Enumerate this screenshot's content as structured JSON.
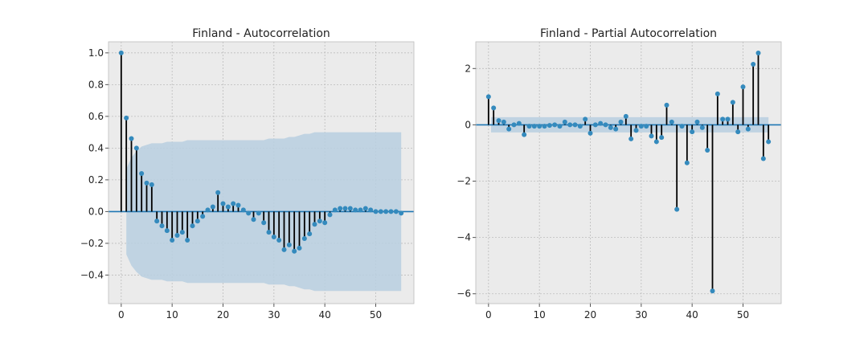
{
  "colors": {
    "background": "#ffffff",
    "plot_background": "#ebebeb",
    "grid": "#bcbcbc",
    "band": "#b9cfe0",
    "stem": "#000000",
    "marker": "#348abd",
    "zero_line": "#1f77b4",
    "text": "#222222"
  },
  "chart_data": [
    {
      "type": "stem",
      "title": "Finland - Autocorrelation",
      "xlabel": "",
      "ylabel": "",
      "xlim": [
        -2.5,
        57.5
      ],
      "ylim": [
        -0.58,
        1.07
      ],
      "xticks": [
        0,
        10,
        20,
        30,
        40,
        50
      ],
      "xtick_labels": [
        "0",
        "10",
        "20",
        "30",
        "40",
        "50"
      ],
      "yticks": [
        -0.4,
        -0.2,
        0.0,
        0.2,
        0.4,
        0.6,
        0.8,
        1.0
      ],
      "ytick_labels": [
        "−0.4",
        "−0.2",
        "0.0",
        "0.2",
        "0.4",
        "0.6",
        "0.8",
        "1.0"
      ],
      "grid": true,
      "lags": [
        0,
        1,
        2,
        3,
        4,
        5,
        6,
        7,
        8,
        9,
        10,
        11,
        12,
        13,
        14,
        15,
        16,
        17,
        18,
        19,
        20,
        21,
        22,
        23,
        24,
        25,
        26,
        27,
        28,
        29,
        30,
        31,
        32,
        33,
        34,
        35,
        36,
        37,
        38,
        39,
        40,
        41,
        42,
        43,
        44,
        45,
        46,
        47,
        48,
        49,
        50,
        51,
        52,
        53,
        54,
        55
      ],
      "values": [
        1.0,
        0.59,
        0.46,
        0.4,
        0.24,
        0.18,
        0.17,
        -0.06,
        -0.09,
        -0.12,
        -0.18,
        -0.15,
        -0.13,
        -0.18,
        -0.09,
        -0.06,
        -0.03,
        0.01,
        0.03,
        0.12,
        0.05,
        0.03,
        0.05,
        0.04,
        0.01,
        -0.01,
        -0.05,
        -0.01,
        -0.07,
        -0.13,
        -0.16,
        -0.18,
        -0.24,
        -0.21,
        -0.25,
        -0.23,
        -0.17,
        -0.14,
        -0.08,
        -0.06,
        -0.07,
        -0.02,
        0.01,
        0.02,
        0.02,
        0.02,
        0.01,
        0.01,
        0.02,
        0.01,
        0.0,
        0.0,
        0.0,
        0.0,
        0.0,
        -0.01
      ],
      "confidence_band": {
        "lags": [
          1,
          2,
          3,
          4,
          5,
          6,
          7,
          8,
          9,
          10,
          11,
          12,
          13,
          14,
          15,
          16,
          17,
          18,
          19,
          20,
          21,
          22,
          23,
          24,
          25,
          26,
          27,
          28,
          29,
          30,
          31,
          32,
          33,
          34,
          35,
          36,
          37,
          38,
          39,
          40,
          41,
          42,
          43,
          44,
          45,
          46,
          47,
          48,
          49,
          50,
          51,
          52,
          53,
          54,
          55
        ],
        "upper": [
          0.27,
          0.34,
          0.38,
          0.41,
          0.42,
          0.43,
          0.43,
          0.43,
          0.44,
          0.44,
          0.44,
          0.44,
          0.45,
          0.45,
          0.45,
          0.45,
          0.45,
          0.45,
          0.45,
          0.45,
          0.45,
          0.45,
          0.45,
          0.45,
          0.45,
          0.45,
          0.45,
          0.45,
          0.46,
          0.46,
          0.46,
          0.46,
          0.47,
          0.47,
          0.48,
          0.49,
          0.49,
          0.5,
          0.5,
          0.5,
          0.5,
          0.5,
          0.5,
          0.5,
          0.5,
          0.5,
          0.5,
          0.5,
          0.5,
          0.5,
          0.5,
          0.5,
          0.5,
          0.5,
          0.5
        ]
      }
    },
    {
      "type": "stem",
      "title": "Finland - Partial Autocorrelation",
      "xlabel": "",
      "ylabel": "",
      "xlim": [
        -2.5,
        57.5
      ],
      "ylim": [
        -6.35,
        2.95
      ],
      "xticks": [
        0,
        10,
        20,
        30,
        40,
        50
      ],
      "xtick_labels": [
        "0",
        "10",
        "20",
        "30",
        "40",
        "50"
      ],
      "yticks": [
        -6,
        -4,
        -2,
        0,
        2
      ],
      "ytick_labels": [
        "−6",
        "−4",
        "−2",
        "0",
        "2"
      ],
      "grid": true,
      "lags": [
        0,
        1,
        2,
        3,
        4,
        5,
        6,
        7,
        8,
        9,
        10,
        11,
        12,
        13,
        14,
        15,
        16,
        17,
        18,
        19,
        20,
        21,
        22,
        23,
        24,
        25,
        26,
        27,
        28,
        29,
        30,
        31,
        32,
        33,
        34,
        35,
        36,
        37,
        38,
        39,
        40,
        41,
        42,
        43,
        44,
        45,
        46,
        47,
        48,
        49,
        50,
        51,
        52,
        53,
        54,
        55
      ],
      "values": [
        1.0,
        0.6,
        0.15,
        0.1,
        -0.15,
        0.0,
        0.05,
        -0.35,
        -0.05,
        -0.05,
        -0.05,
        -0.05,
        -0.02,
        0.0,
        -0.05,
        0.1,
        0.0,
        0.0,
        -0.05,
        0.2,
        -0.3,
        0.0,
        0.05,
        0.0,
        -0.1,
        -0.15,
        0.1,
        0.3,
        -0.5,
        -0.2,
        -0.05,
        -0.05,
        -0.4,
        -0.6,
        -0.45,
        0.7,
        0.1,
        -3.0,
        -0.05,
        -1.35,
        -0.25,
        0.1,
        -0.1,
        -0.9,
        -5.9,
        1.1,
        0.2,
        0.2,
        0.8,
        -0.25,
        1.35,
        -0.15,
        2.15,
        2.55,
        -1.2,
        -0.6
      ],
      "confidence_band": {
        "lags": [
          0.5,
          55
        ],
        "upper": [
          0.27,
          0.27
        ]
      }
    }
  ]
}
